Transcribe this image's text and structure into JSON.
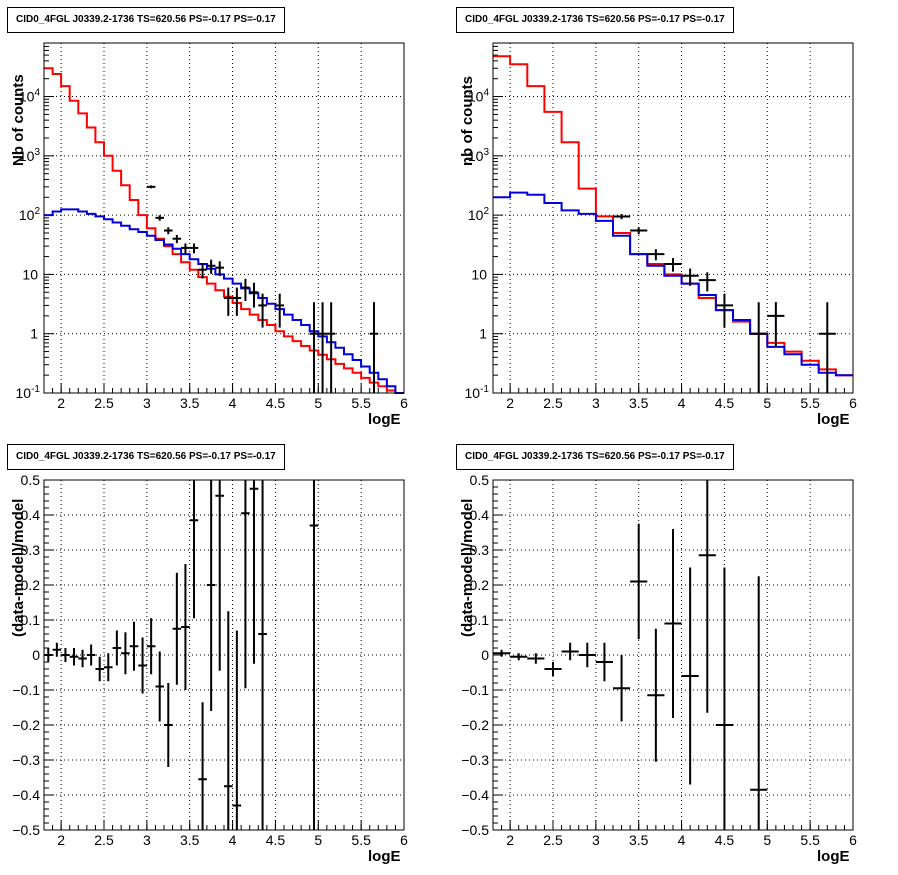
{
  "chart_data": [
    {
      "type": "line",
      "panel": "top-left",
      "title": "CID0_4FGL J0339.2-1736 TS=620.56 PS=-0.17 PS=-0.17",
      "xlabel": "logE",
      "ylabel": "Nb of counts",
      "xlim": [
        1.8,
        6.0
      ],
      "ylim": [
        0.1,
        80000
      ],
      "yscale": "log",
      "grid": true,
      "x_ticks": [
        "2",
        "2.5",
        "3",
        "3.5",
        "4",
        "4.5",
        "5",
        "5.5",
        "6"
      ],
      "y_ticks": [
        "10^-1",
        "1",
        "10",
        "10^2",
        "10^3",
        "10^4"
      ],
      "bin_edges": [
        1.8,
        1.9,
        2.0,
        2.1,
        2.2,
        2.3,
        2.4,
        2.5,
        2.6,
        2.7,
        2.8,
        2.9,
        3.0,
        3.1,
        3.2,
        3.3,
        3.4,
        3.5,
        3.6,
        3.7,
        3.8,
        3.9,
        4.0,
        4.1,
        4.2,
        4.3,
        4.4,
        4.5,
        4.6,
        4.7,
        4.8,
        4.9,
        5.0,
        5.1,
        5.2,
        5.3,
        5.4,
        5.5,
        5.6,
        5.7,
        5.8,
        5.9,
        6.0
      ],
      "series": [
        {
          "color": "#ff0000",
          "style": "step",
          "values": [
            30000,
            24000,
            15000,
            8500,
            5200,
            3000,
            1700,
            1000,
            560,
            320,
            180,
            100,
            60,
            40,
            30,
            22,
            16,
            12,
            9,
            7,
            5.4,
            4.2,
            3.3,
            2.6,
            2.1,
            1.7,
            1.4,
            1.1,
            0.9,
            0.75,
            0.62,
            0.52,
            0.44,
            0.37,
            0.31,
            0.26,
            0.22,
            0.18,
            0.15,
            0.13,
            0.11,
            0.1
          ]
        },
        {
          "color": "#0000dd",
          "style": "step",
          "values": [
            100,
            115,
            125,
            125,
            115,
            105,
            95,
            85,
            75,
            66,
            58,
            52,
            45,
            38,
            32,
            27,
            22,
            18,
            15,
            12.5,
            10,
            8.5,
            7,
            5.8,
            4.8,
            4,
            3.2,
            2.6,
            2.1,
            1.7,
            1.4,
            1.1,
            0.9,
            0.72,
            0.58,
            0.45,
            0.36,
            0.28,
            0.22,
            0.17,
            0.13,
            0.1
          ]
        },
        {
          "name": "data",
          "color": "#000000",
          "style": "errorbar",
          "x": [
            3.05,
            3.15,
            3.25,
            3.35,
            3.45,
            3.55,
            3.65,
            3.75,
            3.85,
            3.95,
            4.05,
            4.15,
            4.25,
            4.35,
            4.55,
            4.95,
            5.05,
            5.15,
            5.65
          ],
          "y": [
            300,
            90,
            55,
            40,
            28,
            28,
            12,
            14,
            13,
            4,
            4,
            6,
            5,
            3,
            3,
            1,
            1,
            1,
            1
          ]
        }
      ]
    },
    {
      "type": "line",
      "panel": "top-right",
      "title": "CID0_4FGL J0339.2-1736 TS=620.56 PS=-0.17 PS=-0.17",
      "xlabel": "logE",
      "ylabel": "nb of counts",
      "xlim": [
        1.8,
        6.0
      ],
      "ylim": [
        0.1,
        80000
      ],
      "yscale": "log",
      "grid": true,
      "x_ticks": [
        "2",
        "2.5",
        "3",
        "3.5",
        "4",
        "4.5",
        "5",
        "5.5",
        "6"
      ],
      "y_ticks": [
        "10^-1",
        "1",
        "10",
        "10^2",
        "10^3",
        "10^4"
      ],
      "bin_edges": [
        1.8,
        2.0,
        2.2,
        2.4,
        2.6,
        2.8,
        3.0,
        3.2,
        3.4,
        3.6,
        3.8,
        4.0,
        4.2,
        4.4,
        4.6,
        4.8,
        5.0,
        5.2,
        5.4,
        5.6,
        5.8,
        6.0
      ],
      "series": [
        {
          "color": "#ff0000",
          "style": "step",
          "values": [
            48000,
            35000,
            15000,
            5500,
            1700,
            280,
            95,
            50,
            22,
            15,
            10,
            7,
            4,
            2.5,
            1.6,
            1,
            0.7,
            0.5,
            0.35,
            0.25,
            0.2
          ]
        },
        {
          "color": "#0000dd",
          "style": "step",
          "values": [
            200,
            240,
            220,
            160,
            120,
            105,
            80,
            45,
            22,
            14,
            9.5,
            7,
            4.5,
            2.5,
            1.7,
            1,
            0.6,
            0.45,
            0.3,
            0.22,
            0.2
          ]
        },
        {
          "name": "data",
          "color": "#000000",
          "style": "errorbar",
          "x": [
            3.3,
            3.5,
            3.7,
            3.9,
            4.1,
            4.3,
            4.5,
            4.9,
            5.1,
            5.7
          ],
          "y": [
            95,
            55,
            22,
            15,
            9.5,
            8,
            3,
            1,
            2,
            1
          ]
        }
      ]
    },
    {
      "type": "scatter",
      "panel": "bottom-left",
      "title": "CID0_4FGL J0339.2-1736 TS=620.56 PS=-0.17 PS=-0.17",
      "xlabel": "logE",
      "ylabel": "(data-model)/model",
      "xlim": [
        1.8,
        6.0
      ],
      "ylim": [
        -0.5,
        0.5
      ],
      "grid": true,
      "x_ticks": [
        "2",
        "2.5",
        "3",
        "3.5",
        "4",
        "4.5",
        "5",
        "5.5",
        "6"
      ],
      "y_ticks": [
        "−0.5",
        "−0.4",
        "−0.3",
        "−0.2",
        "−0.1",
        "0",
        "0.1",
        "0.2",
        "0.3",
        "0.4",
        "0.5"
      ],
      "series": [
        {
          "name": "residuals",
          "style": "errorbar",
          "color": "#000000",
          "x": [
            1.85,
            1.95,
            2.05,
            2.15,
            2.25,
            2.35,
            2.45,
            2.55,
            2.65,
            2.75,
            2.85,
            2.95,
            3.05,
            3.15,
            3.25,
            3.35,
            3.45,
            3.55,
            3.65,
            3.75,
            3.85,
            3.95,
            4.05,
            4.15,
            4.25,
            4.35,
            4.95
          ],
          "y": [
            0.0,
            0.015,
            0.0,
            -0.005,
            -0.01,
            0.0,
            -0.04,
            -0.035,
            0.02,
            0.005,
            0.025,
            -0.03,
            0.025,
            -0.09,
            -0.2,
            0.075,
            0.08,
            0.385,
            -0.355,
            0.2,
            0.455,
            -0.375,
            -0.43,
            0.405,
            0.475,
            0.06,
            0.37
          ],
          "err": [
            0.02,
            0.02,
            0.02,
            0.025,
            0.025,
            0.03,
            0.035,
            0.04,
            0.05,
            0.06,
            0.07,
            0.08,
            0.08,
            0.1,
            0.12,
            0.16,
            0.18,
            0.28,
            0.22,
            0.36,
            0.5,
            0.5,
            0.5,
            0.5,
            0.5,
            0.7,
            0.9
          ]
        }
      ]
    },
    {
      "type": "scatter",
      "panel": "bottom-right",
      "title": "CID0_4FGL J0339.2-1736 TS=620.56 PS=-0.17 PS=-0.17",
      "xlabel": "logE",
      "ylabel": "(data-model)/model",
      "xlim": [
        1.8,
        6.0
      ],
      "ylim": [
        -0.5,
        0.5
      ],
      "grid": true,
      "x_ticks": [
        "2",
        "2.5",
        "3",
        "3.5",
        "4",
        "4.5",
        "5",
        "5.5",
        "6"
      ],
      "y_ticks": [
        "−0.5",
        "−0.4",
        "−0.3",
        "−0.2",
        "−0.1",
        "0",
        "0.1",
        "0.2",
        "0.3",
        "0.4",
        "0.5"
      ],
      "series": [
        {
          "name": "residuals",
          "style": "errorbar",
          "color": "#000000",
          "x": [
            1.9,
            2.1,
            2.3,
            2.5,
            2.7,
            2.9,
            3.1,
            3.3,
            3.5,
            3.7,
            3.9,
            4.1,
            4.3,
            4.5,
            4.9
          ],
          "y": [
            0.005,
            -0.005,
            -0.01,
            -0.04,
            0.01,
            0.0,
            -0.02,
            -0.095,
            0.21,
            -0.115,
            0.09,
            -0.06,
            0.285,
            -0.2,
            -0.385
          ],
          "err": [
            0.01,
            0.01,
            0.015,
            0.02,
            0.025,
            0.035,
            0.055,
            0.095,
            0.165,
            0.19,
            0.27,
            0.31,
            0.45,
            0.45,
            0.61
          ]
        }
      ]
    }
  ]
}
